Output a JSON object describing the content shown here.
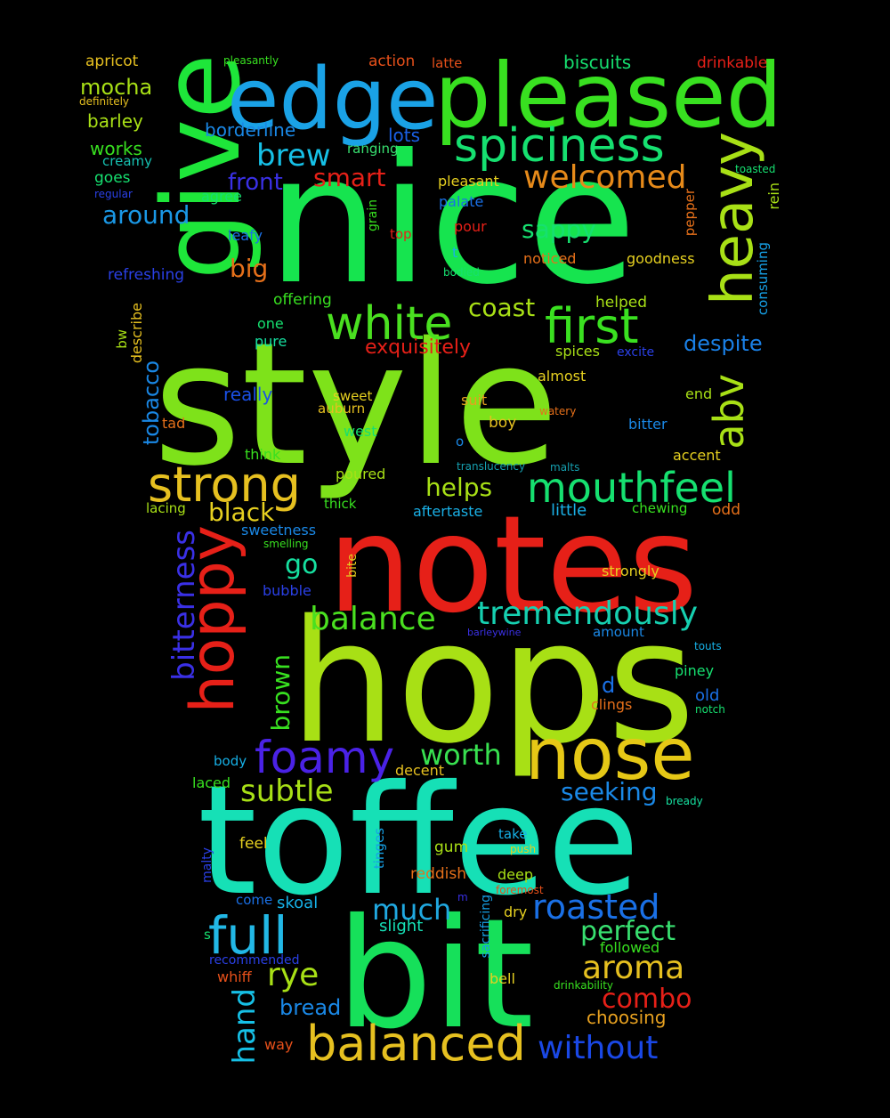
{
  "words": [
    {
      "text": "style",
      "color": "#7ee21a",
      "rotated": false
    },
    {
      "text": "nice",
      "color": "#16e44f",
      "rotated": false
    },
    {
      "text": "hops",
      "color": "#a8e015",
      "rotated": false
    },
    {
      "text": "toffee",
      "color": "#16e0b6",
      "rotated": false
    },
    {
      "text": "notes",
      "color": "#e62018",
      "rotated": false
    },
    {
      "text": "bit",
      "color": "#16e05a",
      "rotated": false
    },
    {
      "text": "give",
      "color": "#1ee63a",
      "rotated": true
    },
    {
      "text": "pleased",
      "color": "#38e020",
      "rotated": false
    },
    {
      "text": "edge",
      "color": "#1aa2e6",
      "rotated": false
    },
    {
      "text": "nose",
      "color": "#e6c816",
      "rotated": false
    },
    {
      "text": "heavy",
      "color": "#a8e016",
      "rotated": true
    },
    {
      "text": "hoppy",
      "color": "#e62018",
      "rotated": true
    },
    {
      "text": "spiciness",
      "color": "#16e070",
      "rotated": false
    },
    {
      "text": "first",
      "color": "#3ae020",
      "rotated": false
    },
    {
      "text": "white",
      "color": "#4ae020",
      "rotated": false
    },
    {
      "text": "strong",
      "color": "#e6c020",
      "rotated": false
    },
    {
      "text": "mouthfeel",
      "color": "#16e070",
      "rotated": false
    },
    {
      "text": "foamy",
      "color": "#4a22e6",
      "rotated": false
    },
    {
      "text": "balanced",
      "color": "#e6c020",
      "rotated": false
    },
    {
      "text": "full",
      "color": "#22b8e6",
      "rotated": false
    },
    {
      "text": "tremendously",
      "color": "#16d0b0",
      "rotated": false
    },
    {
      "text": "abv",
      "color": "#a8e016",
      "rotated": true
    },
    {
      "text": "welcomed",
      "color": "#e68a1a",
      "rotated": false
    },
    {
      "text": "roasted",
      "color": "#1a70e6",
      "rotated": false
    },
    {
      "text": "aroma",
      "color": "#e6c020",
      "rotated": false
    },
    {
      "text": "balance",
      "color": "#4ae020",
      "rotated": false
    },
    {
      "text": "subtle",
      "color": "#a8e016",
      "rotated": false
    },
    {
      "text": "worth",
      "color": "#38e050",
      "rotated": false
    },
    {
      "text": "bitterness",
      "color": "#3a30e6",
      "rotated": true
    },
    {
      "text": "without",
      "color": "#1a48e6",
      "rotated": false
    },
    {
      "text": "brew",
      "color": "#16c0e6",
      "rotated": false
    },
    {
      "text": "much",
      "color": "#20a8e0",
      "rotated": false
    },
    {
      "text": "perfect",
      "color": "#38e070",
      "rotated": false
    },
    {
      "text": "rye",
      "color": "#a8e016",
      "rotated": false
    },
    {
      "text": "hand",
      "color": "#16c0e6",
      "rotated": true
    },
    {
      "text": "combo",
      "color": "#e62018",
      "rotated": false
    },
    {
      "text": "seeking",
      "color": "#1a88e6",
      "rotated": false
    },
    {
      "text": "around",
      "color": "#1a98e6",
      "rotated": false
    },
    {
      "text": "sappy",
      "color": "#16e070",
      "rotated": false
    },
    {
      "text": "coast",
      "color": "#a8e016",
      "rotated": false
    },
    {
      "text": "black",
      "color": "#e6d020",
      "rotated": false
    },
    {
      "text": "go",
      "color": "#16e0a0",
      "rotated": false
    },
    {
      "text": "helps",
      "color": "#a8e016",
      "rotated": false
    },
    {
      "text": "brown",
      "color": "#38e020",
      "rotated": true
    },
    {
      "text": "smart",
      "color": "#e62018",
      "rotated": false
    },
    {
      "text": "big",
      "color": "#e6701a",
      "rotated": false
    },
    {
      "text": "front",
      "color": "#3a30e6",
      "rotated": false
    },
    {
      "text": "despite",
      "color": "#1a80e6",
      "rotated": false
    },
    {
      "text": "exquisitely",
      "color": "#e62018",
      "rotated": false
    },
    {
      "text": "tobacco",
      "color": "#1a88e6",
      "rotated": true
    },
    {
      "text": "mocha",
      "color": "#a8e016",
      "rotated": false
    },
    {
      "text": "bread",
      "color": "#1a88e6",
      "rotated": false
    },
    {
      "text": "borderline",
      "color": "#1a88e6",
      "rotated": false
    },
    {
      "text": "biscuits",
      "color": "#16e070",
      "rotated": false
    },
    {
      "text": "choosing",
      "color": "#e6a020",
      "rotated": false
    },
    {
      "text": "really",
      "color": "#1a50e6",
      "rotated": false
    },
    {
      "text": "lots",
      "color": "#1a60e6",
      "rotated": false
    },
    {
      "text": "d",
      "color": "#1a70e6",
      "rotated": false
    },
    {
      "text": "apricot",
      "color": "#e6c020",
      "rotated": false
    },
    {
      "text": "action",
      "color": "#e6501a",
      "rotated": false
    },
    {
      "text": "latte",
      "color": "#e6501a",
      "rotated": false
    },
    {
      "text": "drinkable",
      "color": "#e62018",
      "rotated": false
    },
    {
      "text": "pleasantly",
      "color": "#38e020",
      "rotated": false
    },
    {
      "text": "definitely",
      "color": "#e6c020",
      "rotated": false
    },
    {
      "text": "barley",
      "color": "#a8e016",
      "rotated": false
    },
    {
      "text": "works",
      "color": "#38e020",
      "rotated": false
    },
    {
      "text": "creamy",
      "color": "#16c0b0",
      "rotated": false
    },
    {
      "text": "goes",
      "color": "#16e070",
      "rotated": false
    },
    {
      "text": "regular",
      "color": "#2a40e6",
      "rotated": false
    },
    {
      "text": "agree",
      "color": "#16e070",
      "rotated": false
    },
    {
      "text": "leafy",
      "color": "#1a70e6",
      "rotated": false
    },
    {
      "text": "refreshing",
      "color": "#2a40e6",
      "rotated": false
    },
    {
      "text": "ranging",
      "color": "#38e070",
      "rotated": false
    },
    {
      "text": "pleasant",
      "color": "#e6d020",
      "rotated": false
    },
    {
      "text": "palate",
      "color": "#1a70e6",
      "rotated": false
    },
    {
      "text": "pour",
      "color": "#e62018",
      "rotated": false
    },
    {
      "text": "top",
      "color": "#e62018",
      "rotated": false
    },
    {
      "text": "t",
      "color": "#1ab0e6",
      "rotated": false
    },
    {
      "text": "grain",
      "color": "#38e020",
      "rotated": true
    },
    {
      "text": "bodied",
      "color": "#16e070",
      "rotated": false
    },
    {
      "text": "noticed",
      "color": "#e6701a",
      "rotated": false
    },
    {
      "text": "goodness",
      "color": "#e6d020",
      "rotated": false
    },
    {
      "text": "pepper",
      "color": "#e6701a",
      "rotated": true
    },
    {
      "text": "toasted",
      "color": "#16e070",
      "rotated": false
    },
    {
      "text": "rein",
      "color": "#a8e016",
      "rotated": true
    },
    {
      "text": "consuming",
      "color": "#16a0e6",
      "rotated": true
    },
    {
      "text": "offering",
      "color": "#38e020",
      "rotated": false
    },
    {
      "text": "helped",
      "color": "#a8e016",
      "rotated": false
    },
    {
      "text": "one",
      "color": "#16e070",
      "rotated": false
    },
    {
      "text": "pure",
      "color": "#16e0a0",
      "rotated": false
    },
    {
      "text": "bw",
      "color": "#a8e016",
      "rotated": true
    },
    {
      "text": "describe",
      "color": "#e6c020",
      "rotated": true
    },
    {
      "text": "spices",
      "color": "#a8e016",
      "rotated": false
    },
    {
      "text": "excite",
      "color": "#2a40e6",
      "rotated": false
    },
    {
      "text": "almost",
      "color": "#e6d020",
      "rotated": false
    },
    {
      "text": "sweet",
      "color": "#e6d020",
      "rotated": false
    },
    {
      "text": "auburn",
      "color": "#e6c020",
      "rotated": false
    },
    {
      "text": "suit",
      "color": "#e6a020",
      "rotated": false
    },
    {
      "text": "end",
      "color": "#a8e016",
      "rotated": false
    },
    {
      "text": "watery",
      "color": "#e6701a",
      "rotated": false
    },
    {
      "text": "tad",
      "color": "#e6701a",
      "rotated": false
    },
    {
      "text": "boy",
      "color": "#e6c020",
      "rotated": false
    },
    {
      "text": "bitter",
      "color": "#1a88e6",
      "rotated": false
    },
    {
      "text": "west",
      "color": "#16e070",
      "rotated": false
    },
    {
      "text": "o",
      "color": "#1a88e6",
      "rotated": false
    },
    {
      "text": "think",
      "color": "#38e020",
      "rotated": false
    },
    {
      "text": "translucency",
      "color": "#16a0b0",
      "rotated": false
    },
    {
      "text": "malts",
      "color": "#16a0b0",
      "rotated": false
    },
    {
      "text": "accent",
      "color": "#e6d020",
      "rotated": false
    },
    {
      "text": "poured",
      "color": "#a8e016",
      "rotated": false
    },
    {
      "text": "lacing",
      "color": "#a8e016",
      "rotated": false
    },
    {
      "text": "thick",
      "color": "#38e020",
      "rotated": false
    },
    {
      "text": "aftertaste",
      "color": "#1ab0e6",
      "rotated": false
    },
    {
      "text": "little",
      "color": "#1ab0e6",
      "rotated": false
    },
    {
      "text": "chewing",
      "color": "#38e020",
      "rotated": false
    },
    {
      "text": "odd",
      "color": "#e6701a",
      "rotated": false
    },
    {
      "text": "sweetness",
      "color": "#1a88e6",
      "rotated": false
    },
    {
      "text": "smelling",
      "color": "#38e020",
      "rotated": false
    },
    {
      "text": "bite",
      "color": "#e6d020",
      "rotated": true
    },
    {
      "text": "strongly",
      "color": "#e6d020",
      "rotated": false
    },
    {
      "text": "bubble",
      "color": "#2a40e6",
      "rotated": false
    },
    {
      "text": "barleywine",
      "color": "#3a30e6",
      "rotated": false
    },
    {
      "text": "amount",
      "color": "#1a88e6",
      "rotated": false
    },
    {
      "text": "touts",
      "color": "#16b0e6",
      "rotated": false
    },
    {
      "text": "piney",
      "color": "#16e070",
      "rotated": false
    },
    {
      "text": "old",
      "color": "#1a70e6",
      "rotated": false
    },
    {
      "text": "clings",
      "color": "#e6701a",
      "rotated": false
    },
    {
      "text": "notch",
      "color": "#16e070",
      "rotated": false
    },
    {
      "text": "body",
      "color": "#16b0e6",
      "rotated": false
    },
    {
      "text": "decent",
      "color": "#e6c020",
      "rotated": false
    },
    {
      "text": "laced",
      "color": "#38e020",
      "rotated": false
    },
    {
      "text": "bready",
      "color": "#16e0a0",
      "rotated": false
    },
    {
      "text": "feel",
      "color": "#e6d020",
      "rotated": false
    },
    {
      "text": "tinges",
      "color": "#16a0e6",
      "rotated": true
    },
    {
      "text": "gum",
      "color": "#a8e016",
      "rotated": false
    },
    {
      "text": "take",
      "color": "#16b0e6",
      "rotated": false
    },
    {
      "text": "push",
      "color": "#e6d020",
      "rotated": false
    },
    {
      "text": "malty",
      "color": "#2a40e6",
      "rotated": true
    },
    {
      "text": "reddish",
      "color": "#e6701a",
      "rotated": false
    },
    {
      "text": "deep",
      "color": "#a8e016",
      "rotated": false
    },
    {
      "text": "foremost",
      "color": "#e6501a",
      "rotated": false
    },
    {
      "text": "come",
      "color": "#1a70e6",
      "rotated": false
    },
    {
      "text": "skoal",
      "color": "#16b0e6",
      "rotated": false
    },
    {
      "text": "m",
      "color": "#3a30e6",
      "rotated": false
    },
    {
      "text": "dry",
      "color": "#e6d020",
      "rotated": false
    },
    {
      "text": "slight",
      "color": "#16e0b6",
      "rotated": false
    },
    {
      "text": "sacrificing",
      "color": "#16a0e6",
      "rotated": true
    },
    {
      "text": "s",
      "color": "#16e070",
      "rotated": false
    },
    {
      "text": "recommended",
      "color": "#2a40e6",
      "rotated": false
    },
    {
      "text": "followed",
      "color": "#38e020",
      "rotated": false
    },
    {
      "text": "whiff",
      "color": "#e6501a",
      "rotated": false
    },
    {
      "text": "bell",
      "color": "#e6d020",
      "rotated": false
    },
    {
      "text": "drinkability",
      "color": "#38e020",
      "rotated": false
    },
    {
      "text": "way",
      "color": "#e6501a",
      "rotated": false
    }
  ]
}
